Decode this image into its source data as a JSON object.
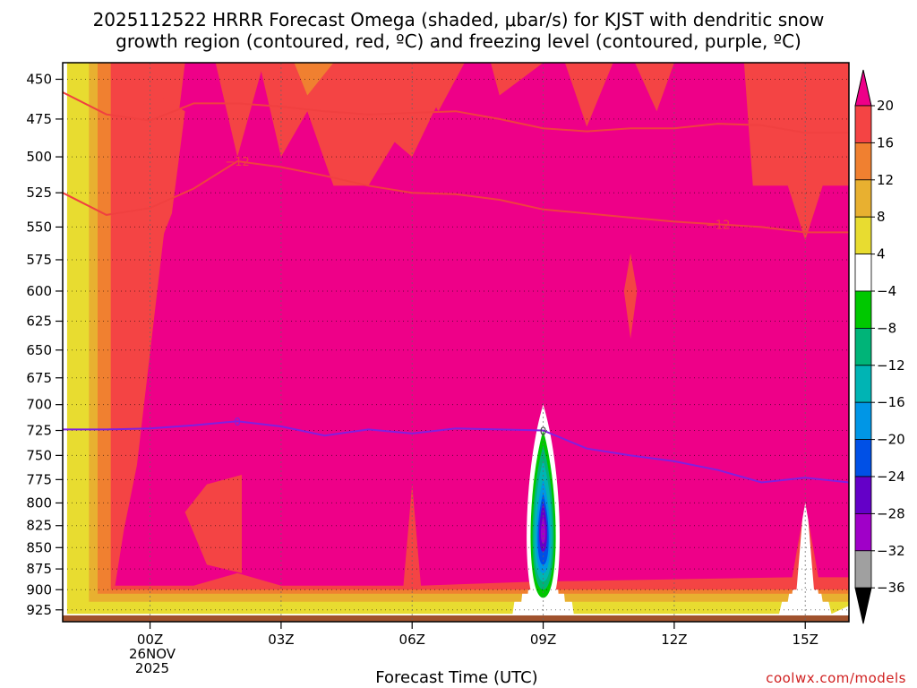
{
  "chart_data": {
    "type": "heatmap",
    "title_line1": "2025112522 HRRR Forecast Omega (shaded, μbar/s) for KJST with dendritic snow",
    "title_line2": "growth region (contoured, red, ºC) and freezing level (contoured, purple, ºC)",
    "xlabel": "Forecast Time (UTC)",
    "x_ticks": [
      "00Z",
      "03Z",
      "06Z",
      "09Z",
      "12Z",
      "15Z"
    ],
    "x_tick_hours": [
      0,
      3,
      6,
      9,
      12,
      15
    ],
    "xlim": [
      -2,
      16
    ],
    "date_label": [
      "26NOV",
      "2025"
    ],
    "y_ticks": [
      450,
      475,
      500,
      525,
      550,
      575,
      600,
      625,
      650,
      675,
      700,
      725,
      750,
      775,
      800,
      825,
      850,
      875,
      900,
      925
    ],
    "ylim": [
      440,
      940
    ],
    "y_scale": "log-pressure",
    "colorbar": {
      "labels": [
        "20",
        "16",
        "12",
        "8",
        "4",
        "−4",
        "−8",
        "−12",
        "−16",
        "−20",
        "−24",
        "−28",
        "−32",
        "−36"
      ],
      "colors": [
        "#ee0088",
        "#f44444",
        "#f08030",
        "#e8b030",
        "#e8dc30",
        "#ffffff",
        "#00c800",
        "#00b478",
        "#00b4b4",
        "#0096e6",
        "#0050e6",
        "#6400c8",
        "#a000c8",
        "#a0a0a0"
      ],
      "over_color": "#ee0088",
      "under_color": "#000000"
    },
    "contours": {
      "snow_growth_label": "−12",
      "freezing_label": "0",
      "snow_growth_color": "#f04040",
      "freezing_color": "#8020e0"
    },
    "freezing_level": {
      "hours": [
        -2,
        -1,
        0,
        1,
        2,
        3,
        4,
        5,
        6,
        7,
        8,
        9,
        10,
        11,
        12,
        13,
        14,
        15,
        16
      ],
      "pressure": [
        724,
        724,
        723,
        720,
        716,
        721,
        730,
        724,
        728,
        723,
        724,
        725,
        743,
        750,
        756,
        765,
        778,
        773,
        778
      ]
    },
    "snow_growth_upper": {
      "hours": [
        -2,
        -1,
        0,
        1,
        2,
        3,
        4,
        5,
        6,
        7,
        8,
        9,
        10,
        11,
        12,
        13,
        14,
        15,
        16
      ],
      "pressure": [
        458,
        472,
        476,
        465,
        465,
        467,
        470,
        472,
        471,
        470,
        475,
        481,
        483,
        481,
        481,
        478,
        479,
        484,
        484
      ]
    },
    "snow_growth_lower": {
      "hours": [
        -2,
        -1,
        0,
        1,
        2,
        3,
        4,
        5,
        6,
        7,
        8,
        9,
        10,
        11,
        12,
        13,
        14,
        15,
        16
      ],
      "pressure": [
        525,
        541,
        536,
        522,
        503,
        507,
        513,
        520,
        525,
        526,
        530,
        537,
        540,
        543,
        546,
        548,
        550,
        554,
        554
      ]
    },
    "omega_features": [
      {
        "name": "strong-lift-core",
        "value_range": [
          -32,
          -4
        ],
        "hour": 9,
        "pressure_range": [
          730,
          910
        ]
      },
      {
        "name": "sinking-mid-levels",
        "value_range": [
          16,
          20
        ],
        "hour_range": [
          -1,
          16
        ],
        "pressure_range": [
          450,
          900
        ]
      }
    ]
  },
  "credit": "coolwx.com/models"
}
